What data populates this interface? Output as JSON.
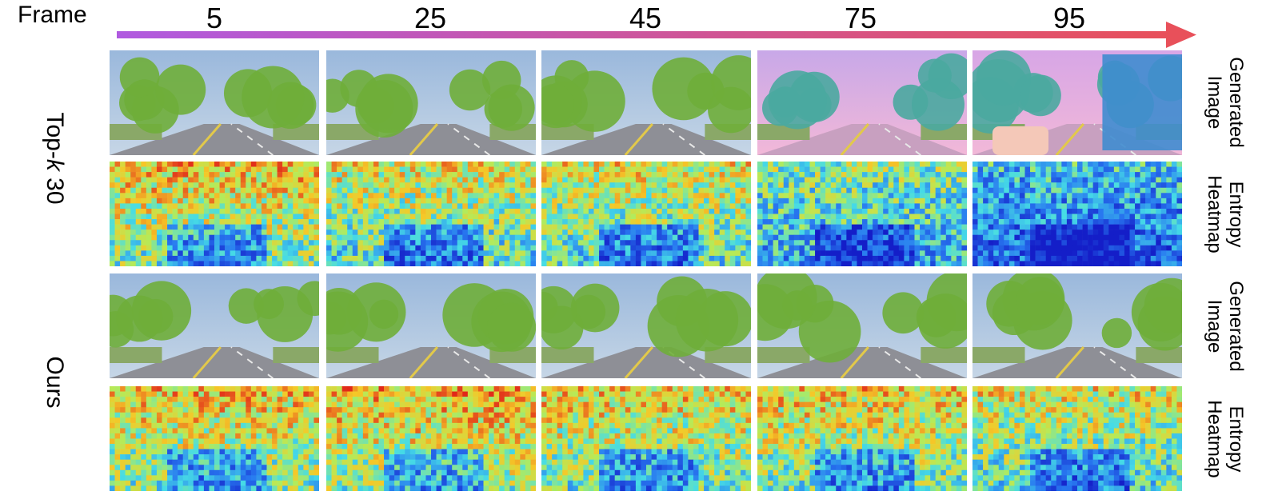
{
  "header": {
    "frame_label": "Frame",
    "frames": [
      "5",
      "25",
      "45",
      "75",
      "95"
    ]
  },
  "groups": [
    {
      "name_prefix": "Top-",
      "name_k": "k",
      "name_suffix": " 30",
      "rows": [
        {
          "type": "image",
          "label_line1": "Generated",
          "label_line2": "Image"
        },
        {
          "type": "heatmap",
          "label_line1": "Entropy",
          "label_line2": "Heatmap"
        }
      ]
    },
    {
      "name_prefix": "Ours",
      "name_k": "",
      "name_suffix": "",
      "rows": [
        {
          "type": "image",
          "label_line1": "Generated",
          "label_line2": "Image"
        },
        {
          "type": "heatmap",
          "label_line1": "Entropy",
          "label_line2": "Heatmap"
        }
      ]
    }
  ],
  "colors": {
    "timeline_start": "#b05ae0",
    "timeline_end": "#e8505a",
    "sky": "#a9c4e0",
    "road": "#8e8f96",
    "trees": "#6fae3a",
    "heat_low": "#1e3cd8",
    "heat_mid": "#49e0e0",
    "heat_high": "#e02818"
  }
}
